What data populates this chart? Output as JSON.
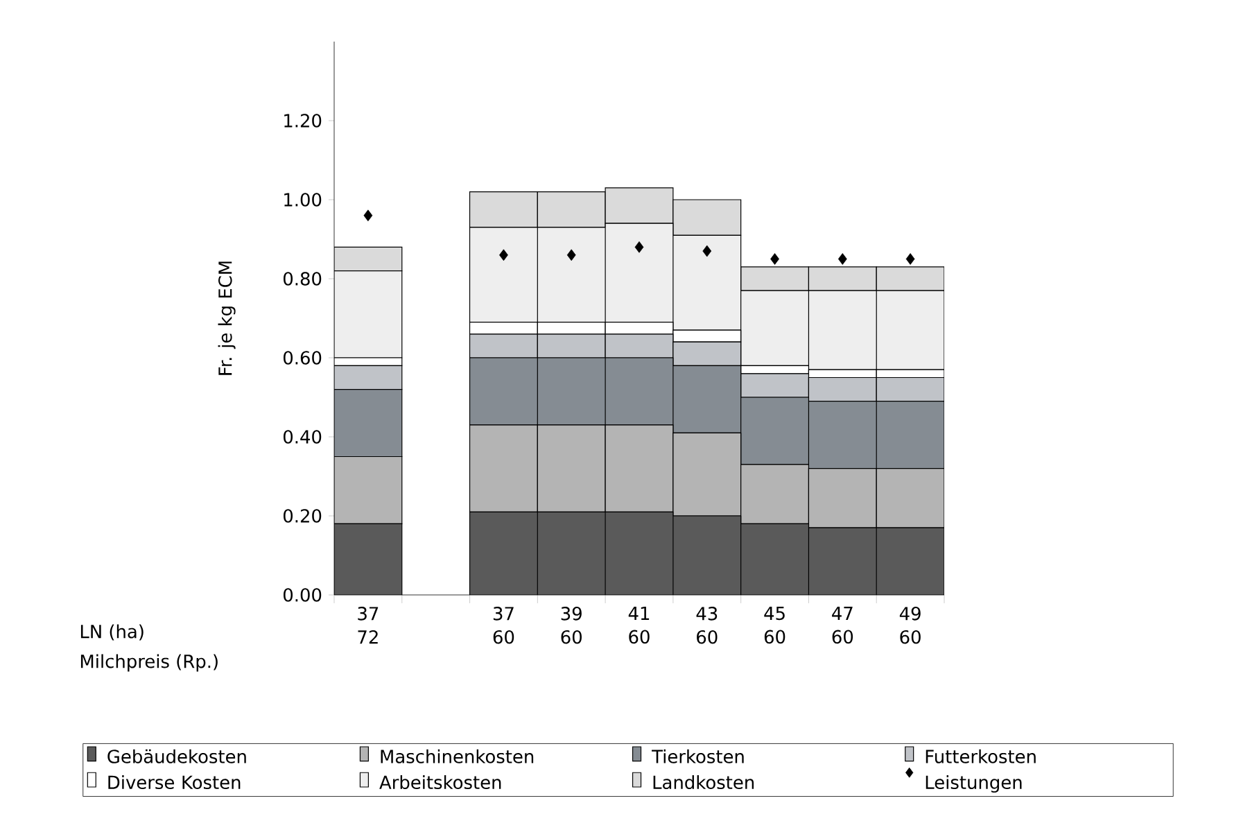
{
  "chart_data": {
    "type": "bar",
    "stacked": true,
    "ylabel": "Fr. je kg ECM",
    "categories": [
      "37 72",
      null,
      "37 60",
      "39 60",
      "41 60",
      "43 60",
      "45 60",
      "47 60",
      "49 60"
    ],
    "annotations": [
      "LN (ha)",
      "Milchpreis (Rp.)"
    ],
    "ylim": [
      0,
      1.4
    ],
    "yticks": [
      {
        "value": 0,
        "label": "0.00"
      },
      {
        "value": 0.2,
        "label": "0.20"
      },
      {
        "value": 0.4,
        "label": "0.40"
      },
      {
        "value": 0.6,
        "label": "0.60"
      },
      {
        "value": 0.8,
        "label": "0.80"
      },
      {
        "value": 1.0,
        "label": "1.00"
      },
      {
        "value": 1.2,
        "label": "1.20"
      }
    ],
    "legend": "bottom",
    "marker": "diamond",
    "series": [
      {
        "name": "Gebäudekosten",
        "color": "#5a5a5a",
        "values": [
          0.18,
          null,
          0.21,
          0.21,
          0.21,
          0.2,
          0.18,
          0.17,
          0.17
        ]
      },
      {
        "name": "Maschinenkosten",
        "color": "#b4b4b4",
        "values": [
          0.17,
          null,
          0.22,
          0.22,
          0.22,
          0.21,
          0.15,
          0.15,
          0.15
        ]
      },
      {
        "name": "Tierkosten",
        "color": "#858c93",
        "values": [
          0.17,
          null,
          0.17,
          0.17,
          0.17,
          0.17,
          0.17,
          0.17,
          0.17
        ]
      },
      {
        "name": "Futterkosten",
        "color": "#c0c3c8",
        "values": [
          0.06,
          null,
          0.06,
          0.06,
          0.06,
          0.06,
          0.06,
          0.06,
          0.06
        ]
      },
      {
        "name": "Diverse Kosten",
        "color": "#ffffff",
        "values": [
          0.02,
          null,
          0.03,
          0.03,
          0.03,
          0.03,
          0.02,
          0.02,
          0.02
        ]
      },
      {
        "name": "Arbeitskosten",
        "color": "#eeeeee",
        "values": [
          0.22,
          null,
          0.24,
          0.24,
          0.25,
          0.24,
          0.19,
          0.2,
          0.2
        ]
      },
      {
        "name": "Landkosten",
        "color": "#dadada",
        "values": [
          0.06,
          null,
          0.09,
          0.09,
          0.09,
          0.09,
          0.06,
          0.06,
          0.06
        ]
      },
      {
        "name": "Leistungen",
        "type": "scatter",
        "color": "#000000",
        "values": [
          0.96,
          null,
          0.86,
          0.86,
          0.88,
          0.87,
          0.85,
          0.85,
          0.85
        ]
      }
    ]
  }
}
